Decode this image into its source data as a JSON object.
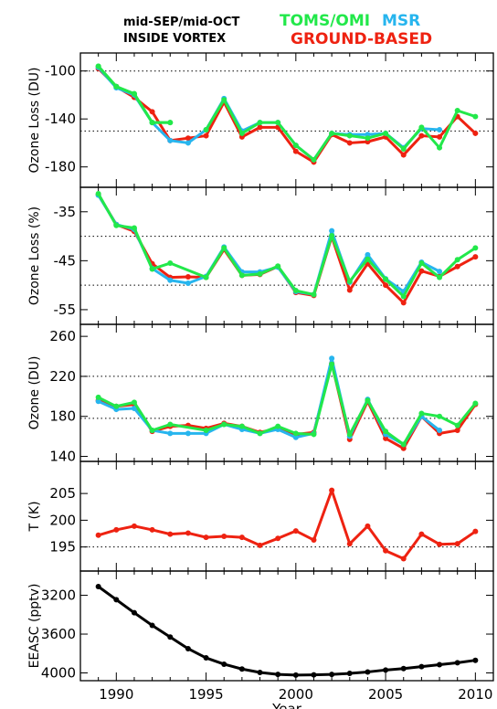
{
  "header": {
    "period": "mid-SEP/mid-OCT",
    "region": "INSIDE VORTEX",
    "toms": "TOMS/OMI",
    "mls": "MSR",
    "ground": "GROUND-BASED"
  },
  "colors": {
    "toms": "#22e84a",
    "mls": "#27b5ee",
    "ground": "#ee2211",
    "black": "#000000"
  },
  "chart_data": [
    {
      "type": "line",
      "ylabel": "Ozone Loss (DU)",
      "ylim": [
        -197,
        -85
      ],
      "yticks": [
        -100,
        -140,
        -180
      ],
      "ref_lines": [
        -100,
        -150
      ],
      "xlim": [
        1988,
        2011
      ],
      "series": [
        {
          "key": "ground",
          "x": [
            1989,
            1990,
            1991,
            1992,
            1993,
            1994,
            1995,
            1996,
            1997,
            1998,
            1999,
            2000,
            2001,
            2002,
            2003,
            2004,
            2005,
            2006,
            2007,
            2008,
            2009,
            2010
          ],
          "y": [
            -98,
            -113,
            -122,
            -134,
            -158,
            -156,
            -154,
            -126,
            -155,
            -147,
            -147,
            -167,
            -176,
            -153,
            -160,
            -159,
            -155,
            -170,
            -154,
            -155,
            -138,
            -152
          ]
        },
        {
          "key": "mls",
          "x": [
            1989,
            1990,
            1991,
            1992,
            1993,
            1994,
            1995,
            1996,
            1997,
            1998,
            1999,
            2000,
            2001,
            2002,
            2003,
            2004,
            2005,
            2006,
            2007,
            2008
          ],
          "y": [
            -97,
            -114,
            -120,
            -143,
            -158,
            -160,
            -149,
            -123,
            -150,
            -143,
            -143,
            -162,
            -174,
            -152,
            -153,
            -153,
            -152,
            -164,
            -148,
            -149
          ]
        },
        {
          "key": "toms",
          "x": [
            1989,
            1990,
            1991,
            1992,
            1993,
            1994,
            1995,
            1996,
            1997,
            1998,
            1999,
            2000,
            2001,
            2002,
            2003,
            2004,
            2005,
            2006,
            2007,
            2008,
            2009,
            2010
          ],
          "y": [
            -96,
            -113,
            -119,
            -143,
            -143,
            null,
            -149,
            -124,
            -152,
            -143,
            -143,
            -162,
            -174,
            -152,
            -154,
            -156,
            -152,
            -165,
            -147,
            -164,
            -133,
            -138
          ]
        },
        {
          "key": "toms",
          "x": [
            1989,
            1990,
            1991,
            1992,
            1993
          ],
          "y": [
            -96,
            -113,
            -119,
            -143,
            -143
          ]
        }
      ]
    },
    {
      "type": "line",
      "ylabel": "Ozone Loss (%)",
      "ylim": [
        -58,
        -30
      ],
      "yticks": [
        -35,
        -45,
        -55
      ],
      "ref_lines": [
        -40,
        -50
      ],
      "xlim": [
        1988,
        2011
      ],
      "series": [
        {
          "key": "ground",
          "x": [
            1989,
            1990,
            1991,
            1992,
            1993,
            1994,
            1995,
            1996,
            1997,
            1998,
            1999,
            2000,
            2001,
            2002,
            2003,
            2004,
            2005,
            2006,
            2007,
            2008,
            2009,
            2010
          ],
          "y": [
            -31.5,
            -37.6,
            -39.0,
            -45.6,
            -48.4,
            -48.3,
            -48.4,
            -42.7,
            -48.0,
            -47.8,
            -46.2,
            -51.5,
            -52.1,
            -40.1,
            -51.0,
            -45.6,
            -50.0,
            -53.6,
            -47.1,
            -48.2,
            -46.2,
            -44.2
          ]
        },
        {
          "key": "mls",
          "x": [
            1989,
            1990,
            1991,
            1992,
            1993,
            1994,
            1995,
            1996,
            1997,
            1998,
            1999,
            2000,
            2001,
            2002,
            2003,
            2004,
            2005,
            2006,
            2007,
            2008
          ],
          "y": [
            -31.6,
            -37.6,
            -38.6,
            -46.6,
            -49.0,
            -49.6,
            -48.2,
            -42.2,
            -47.3,
            -47.3,
            -46.3,
            -51.3,
            -51.9,
            -38.9,
            -49.4,
            -43.8,
            -48.7,
            -51.3,
            -45.3,
            -47.2
          ]
        },
        {
          "key": "toms",
          "x": [
            1989,
            1990,
            1991,
            1992,
            1993,
            1995,
            1996,
            1997,
            1998,
            1999,
            2000,
            2001,
            2002,
            2003,
            2004,
            2005,
            2006,
            2007,
            2008,
            2009,
            2010
          ],
          "y": [
            -31.3,
            -37.8,
            -38.3,
            -46.7,
            -45.5,
            -48.4,
            -42.4,
            -48.0,
            -47.7,
            -46.1,
            -51.1,
            -51.9,
            -39.9,
            -49.2,
            -44.7,
            -48.8,
            -52.3,
            -45.5,
            -48.4,
            -44.8,
            -42.4
          ]
        }
      ]
    },
    {
      "type": "line",
      "ylabel": "Ozone (DU)",
      "ylim": [
        135,
        272
      ],
      "yticks": [
        140,
        180,
        220,
        260
      ],
      "ref_lines": [
        178,
        220
      ],
      "xlim": [
        1988,
        2011
      ],
      "series": [
        {
          "key": "ground",
          "x": [
            1989,
            1990,
            1991,
            1992,
            1993,
            1994,
            1995,
            1996,
            1997,
            1998,
            1999,
            2000,
            2001,
            2002,
            2003,
            2004,
            2005,
            2006,
            2007,
            2008,
            2009,
            2010
          ],
          "y": [
            196,
            190,
            192,
            165,
            170,
            171,
            168,
            173,
            170,
            164,
            168,
            162,
            164,
            233,
            157,
            195,
            158,
            148,
            180,
            163,
            166,
            192
          ]
        },
        {
          "key": "mls",
          "x": [
            1989,
            1990,
            1991,
            1992,
            1993,
            1994,
            1995,
            1996,
            1997,
            1998,
            1999,
            2000,
            2001,
            2002,
            2003,
            2004,
            2005,
            2006,
            2007,
            2008
          ],
          "y": [
            195,
            187,
            188,
            166,
            163,
            163,
            163,
            172,
            167,
            163,
            167,
            159,
            163,
            238,
            160,
            197,
            162,
            152,
            180,
            166
          ]
        },
        {
          "key": "toms",
          "x": [
            1989,
            1990,
            1991,
            1992,
            1993,
            1995,
            1996,
            1997,
            1998,
            1999,
            2000,
            2001,
            2002,
            2003,
            2004,
            2005,
            2006,
            2007,
            2008,
            2009,
            2010
          ],
          "y": [
            199,
            190,
            194,
            166,
            172,
            166,
            172,
            170,
            163,
            170,
            163,
            162,
            232,
            162,
            196,
            165,
            152,
            183,
            180,
            171,
            193
          ]
        }
      ]
    },
    {
      "type": "line",
      "ylabel": "T (K)",
      "ylim": [
        190.5,
        211
      ],
      "yticks": [
        195,
        200,
        205
      ],
      "ref_lines": [
        195
      ],
      "xlim": [
        1988,
        2011
      ],
      "series": [
        {
          "key": "ground",
          "x": [
            1989,
            1990,
            1991,
            1992,
            1993,
            1994,
            1995,
            1996,
            1997,
            1998,
            1999,
            2000,
            2001,
            2002,
            2003,
            2004,
            2005,
            2006,
            2007,
            2008,
            2009,
            2010
          ],
          "y": [
            197.2,
            198.2,
            198.9,
            198.2,
            197.4,
            197.6,
            196.8,
            197.0,
            196.8,
            195.3,
            196.6,
            198.0,
            196.3,
            205.6,
            195.6,
            198.9,
            194.3,
            192.8,
            197.4,
            195.5,
            195.6,
            197.9
          ]
        }
      ]
    },
    {
      "type": "line",
      "ylabel": "EEASC (pptv)",
      "ylim": [
        4080,
        2950
      ],
      "reversed": true,
      "yticks": [
        3200,
        3600,
        4000
      ],
      "ref_lines": [],
      "xlim": [
        1988,
        2011
      ],
      "xlabel": "Year",
      "xticks": [
        1990,
        1995,
        2000,
        2005,
        2010
      ],
      "series": [
        {
          "key": "black",
          "x": [
            1989,
            1990,
            1991,
            1992,
            1993,
            1994,
            1995,
            1996,
            1997,
            1998,
            1999,
            2000,
            2001,
            2002,
            2003,
            2004,
            2005,
            2006,
            2007,
            2008,
            2009,
            2010
          ],
          "y": [
            3110,
            3245,
            3380,
            3510,
            3630,
            3750,
            3845,
            3910,
            3960,
            3995,
            4015,
            4022,
            4020,
            4015,
            4005,
            3990,
            3970,
            3955,
            3935,
            3915,
            3895,
            3870
          ]
        }
      ]
    }
  ]
}
